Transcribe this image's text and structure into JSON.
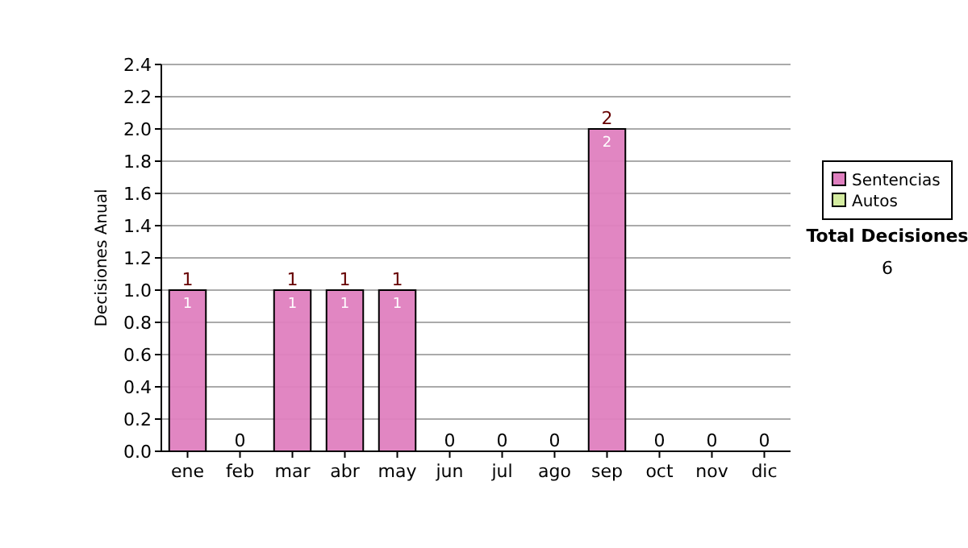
{
  "chart_data": {
    "type": "bar",
    "stacked": true,
    "ylabel": "Decisiones Anual",
    "categories": [
      "ene",
      "feb",
      "mar",
      "abr",
      "may",
      "jun",
      "jul",
      "ago",
      "sep",
      "oct",
      "nov",
      "dic"
    ],
    "series": [
      {
        "name": "Sentencias",
        "color": "#df7fbf",
        "values": [
          1,
          0,
          1,
          1,
          1,
          0,
          0,
          0,
          2,
          0,
          0,
          0
        ],
        "value_labels": [
          "1",
          null,
          "1",
          "1",
          "1",
          null,
          null,
          null,
          "2",
          null,
          null,
          null
        ]
      },
      {
        "name": "Autos",
        "color": "#d4eca0",
        "values": [
          0,
          0,
          0,
          0,
          0,
          0,
          0,
          0,
          0,
          0,
          0,
          0
        ]
      }
    ],
    "totals": [
      "1",
      "0",
      "1",
      "1",
      "1",
      "0",
      "0",
      "0",
      "2",
      "0",
      "0",
      "0"
    ],
    "ylim": [
      0,
      2.4
    ],
    "yticks": [
      {
        "value": 0,
        "label": "0.0"
      },
      {
        "value": 0.2,
        "label": "0.2"
      },
      {
        "value": 0.4,
        "label": "0.4"
      },
      {
        "value": 0.6,
        "label": "0.6"
      },
      {
        "value": 0.8,
        "label": "0.8"
      },
      {
        "value": 1,
        "label": "1.0"
      },
      {
        "value": 1.2,
        "label": "1.2"
      },
      {
        "value": 1.4,
        "label": "1.4"
      },
      {
        "value": 1.6,
        "label": "1.6"
      },
      {
        "value": 1.8,
        "label": "1.8"
      },
      {
        "value": 2,
        "label": "2.0"
      },
      {
        "value": 2.2,
        "label": "2.2"
      },
      {
        "value": 2.4,
        "label": "2.4"
      }
    ],
    "grid": "y",
    "legend": "right",
    "annotations": [
      "Total Decisiones",
      "6"
    ]
  }
}
